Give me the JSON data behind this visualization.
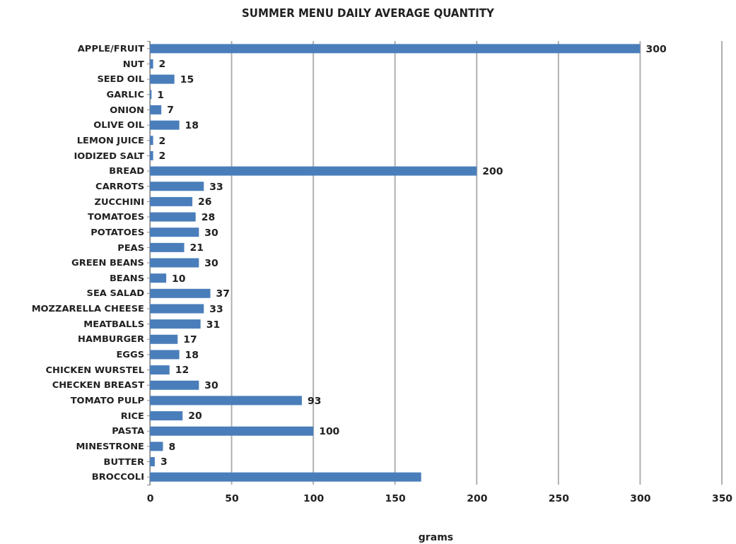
{
  "chart_data": {
    "type": "bar",
    "orientation": "horizontal",
    "title": "SUMMER MENU DAILY AVERAGE QUANTITY",
    "xlabel": "grams",
    "categories": [
      "APPLE/FRUIT",
      "NUT",
      "SEED OIL",
      "GARLIC",
      "ONION",
      "OLIVE OIL",
      "LEMON JUICE",
      "IODIZED SALT",
      "BREAD",
      "CARROTS",
      "ZUCCHINI",
      "TOMATOES",
      "POTATOES",
      "PEAS",
      "GREEN BEANS",
      "BEANS",
      "SEA SALAD",
      "MOZZARELLA CHEESE",
      "MEATBALLS",
      "HAMBURGER",
      "EGGS",
      "CHICKEN WURSTEL",
      "CHECKEN BREAST",
      "TOMATO PULP",
      "RICE",
      "PASTA",
      "MINESTRONE",
      "BUTTER",
      "BROCCOLI"
    ],
    "values": [
      300,
      2,
      15,
      1,
      7,
      18,
      2,
      2,
      200,
      33,
      26,
      28,
      30,
      21,
      30,
      10,
      37,
      33,
      31,
      17,
      18,
      12,
      30,
      93,
      20,
      100,
      8,
      3,
      166
    ],
    "value_labels": [
      "300",
      "2",
      "15",
      "1",
      "7",
      "18",
      "2",
      "2",
      "200",
      "33",
      "26",
      "28",
      "30",
      "21",
      "30",
      "10",
      "37",
      "33",
      "31",
      "17",
      "18",
      "12",
      "30",
      "93",
      "20",
      "100",
      "8",
      "3",
      null
    ],
    "color": "#4a7ebb",
    "xlim": [
      0,
      350
    ],
    "xticks": [
      0,
      50,
      100,
      150,
      200,
      250,
      300,
      350
    ],
    "grid": "x"
  }
}
